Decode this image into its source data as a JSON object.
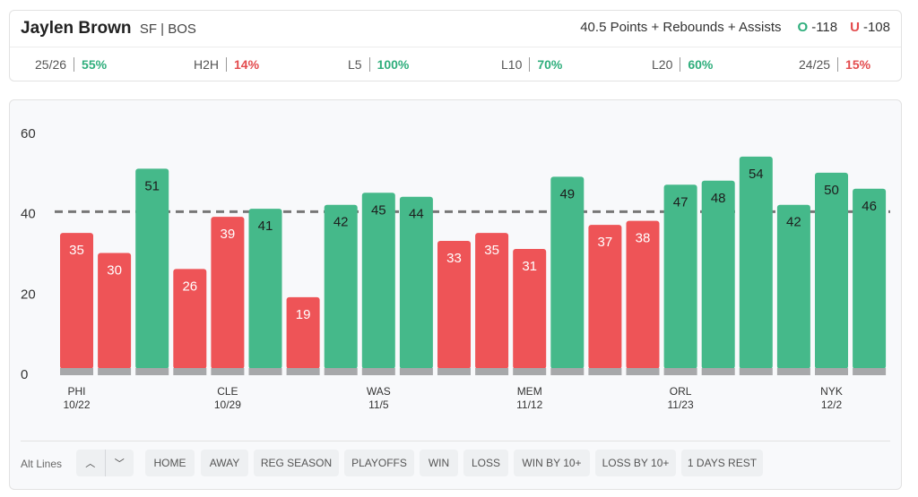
{
  "header": {
    "player_name": "Jaylen Brown",
    "player_meta": "SF | BOS",
    "prop_line": "40.5 Points + Rebounds + Assists",
    "over_letter": "O",
    "over_odds": "-118",
    "under_letter": "U",
    "under_odds": "-108"
  },
  "stats": [
    {
      "label": "25/26",
      "value": "55%",
      "status": "good"
    },
    {
      "label": "H2H",
      "value": "14%",
      "status": "bad"
    },
    {
      "label": "L5",
      "value": "100%",
      "status": "good"
    },
    {
      "label": "L10",
      "value": "70%",
      "status": "good"
    },
    {
      "label": "L20",
      "value": "60%",
      "status": "good"
    },
    {
      "label": "24/25",
      "value": "15%",
      "status": "bad"
    }
  ],
  "colors": {
    "over": "#45b98a",
    "under": "#ee5457",
    "base": "#a7a8aa",
    "line": "#777777"
  },
  "chart_data": {
    "type": "bar",
    "line_value": 40.5,
    "ylim": [
      0,
      60
    ],
    "yticks": [
      "0",
      "20",
      "40",
      "60"
    ],
    "values": [
      35,
      30,
      51,
      26,
      39,
      41,
      19,
      42,
      45,
      44,
      33,
      35,
      31,
      49,
      37,
      38,
      47,
      48,
      54,
      42,
      50,
      46
    ],
    "x_labels": [
      {
        "index": 0,
        "team": "PHI",
        "date": "10/22"
      },
      {
        "index": 4,
        "team": "CLE",
        "date": "10/29"
      },
      {
        "index": 8,
        "team": "WAS",
        "date": "11/5"
      },
      {
        "index": 12,
        "team": "MEM",
        "date": "11/12"
      },
      {
        "index": 16,
        "team": "ORL",
        "date": "11/23"
      },
      {
        "index": 20,
        "team": "NYK",
        "date": "12/2"
      }
    ]
  },
  "filters": {
    "alt_lines_label": "Alt Lines",
    "up_arrow": "︿",
    "down_arrow": "﹀",
    "buttons": [
      "HOME",
      "AWAY",
      "REG SEASON",
      "PLAYOFFS",
      "WIN",
      "LOSS",
      "WIN BY 10+",
      "LOSS BY 10+",
      "1 DAYS REST"
    ]
  }
}
